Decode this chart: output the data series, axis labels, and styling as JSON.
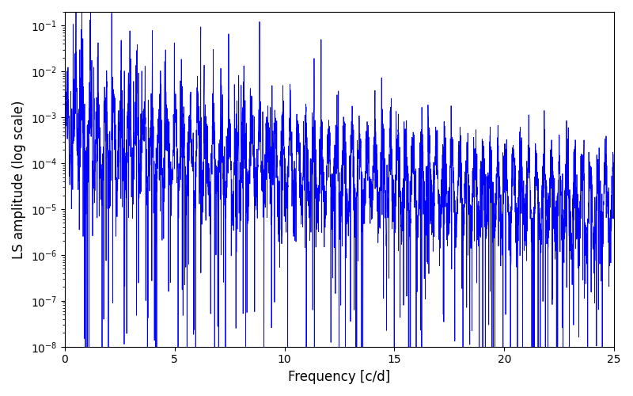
{
  "line_color": "#0000FF",
  "line_width": 0.6,
  "xlabel": "Frequency [c/d]",
  "ylabel": "LS amplitude (log scale)",
  "xlim": [
    0,
    25
  ],
  "ylim": [
    1e-08,
    0.2
  ],
  "xticks": [
    0,
    5,
    10,
    15,
    20,
    25
  ],
  "figsize": [
    8.0,
    5.0
  ],
  "dpi": 100,
  "seed": 12345,
  "n_points": 4000,
  "background_color": "#ffffff"
}
